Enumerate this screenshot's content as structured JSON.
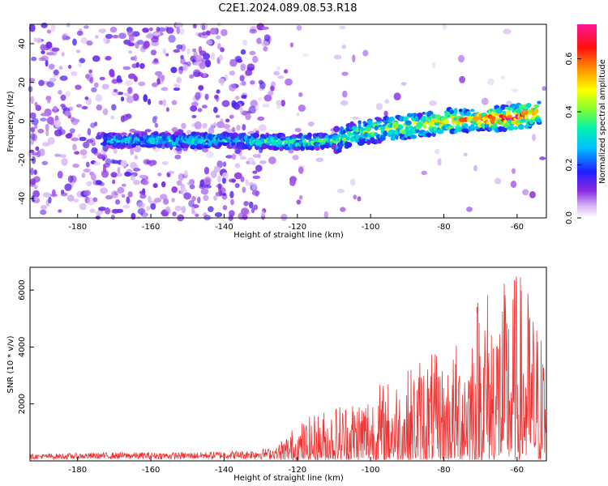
{
  "title": "C2E1.2024.089.08.53.R18",
  "chart_data": [
    {
      "type": "heatmap",
      "xlabel": "Height of straight line (km)",
      "ylabel": "Frequency (Hz)",
      "xlim": [
        -193,
        -52
      ],
      "ylim": [
        -50,
        50
      ],
      "xticks": [
        -180,
        -160,
        -140,
        -120,
        -100,
        -80,
        -60
      ],
      "yticks": [
        -40,
        -20,
        0,
        20,
        40
      ],
      "colorbar": {
        "label": "Normalized spectral amplitude",
        "range": [
          0.0,
          0.73
        ],
        "ticks": [
          0.0,
          0.2,
          0.4,
          0.6
        ]
      },
      "band": {
        "description_points_x": [
          -173,
          -160,
          -140,
          -120,
          -110,
          -100,
          -90,
          -80,
          -70,
          -60,
          -54
        ],
        "center_frequency": [
          -10,
          -10,
          -10,
          -11,
          -10,
          -5,
          -3,
          0,
          1,
          2,
          4
        ],
        "peak_amplitude": [
          0.3,
          0.35,
          0.35,
          0.4,
          0.4,
          0.45,
          0.5,
          0.55,
          0.6,
          0.7,
          0.6
        ]
      },
      "grid": false
    },
    {
      "type": "line",
      "xlabel": "Height of straight line (km)",
      "ylabel": "SNR (10 * v/v)",
      "xlim": [
        -193,
        -52
      ],
      "ylim": [
        0,
        6800
      ],
      "xticks": [
        -180,
        -160,
        -140,
        -120,
        -100,
        -80,
        -60
      ],
      "yticks": [
        2000,
        4000,
        6000
      ],
      "series": [
        {
          "envelope_x": [
            -193,
            -170,
            -150,
            -135,
            -125,
            -120,
            -110,
            -100,
            -90,
            -85,
            -80,
            -75,
            -70,
            -65,
            -60,
            -57,
            -53
          ],
          "envelope_max": [
            300,
            400,
            400,
            500,
            700,
            1300,
            2000,
            2600,
            3200,
            4000,
            3500,
            4500,
            6500,
            6100,
            6750,
            6200,
            4500
          ],
          "color": "#ee3333"
        }
      ],
      "grid": false
    }
  ]
}
